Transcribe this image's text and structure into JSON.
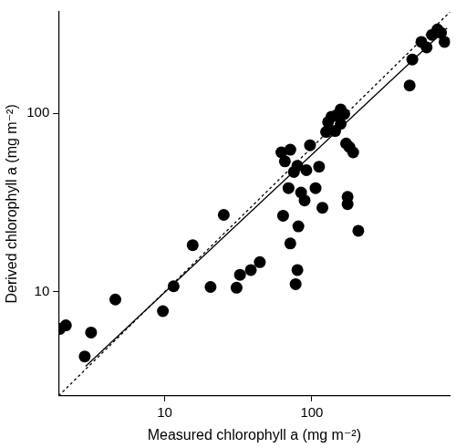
{
  "chart_data": {
    "type": "scatter",
    "x_label": "Measured chlorophyll a (mg m⁻²)",
    "y_label": "Derived chlorophyll a (mg m⁻²)",
    "log": true,
    "grid": false,
    "xlim": [
      1.9,
      870
    ],
    "ylim": [
      2.6,
      370
    ],
    "xticks": [
      10,
      100
    ],
    "yticks": [
      10,
      100
    ],
    "series": [
      {
        "type": "scatter",
        "color": "#000000",
        "marker": "circle",
        "x": [
          1.94,
          2.13,
          2.86,
          3.16,
          4.62,
          9.72,
          11.5,
          15.5,
          20.5,
          25.2,
          30.8,
          32.5,
          38.5,
          44.3,
          63.8,
          71.4,
          77.6,
          79.8,
          81.0,
          62.1,
          65.6,
          71.4,
          69.4,
          75.5,
          79.8,
          84.5,
          89.3,
          91.8,
          97.2,
          106,
          112,
          118,
          125,
          129,
          136,
          144,
          148,
          157,
          157,
          166,
          171,
          180,
          191,
          175,
          207,
          175,
          462,
          482,
          555,
          603,
          656,
          714,
          755,
          798
        ],
        "values": [
          6.17,
          6.46,
          4.32,
          5.89,
          9.02,
          7.76,
          10.7,
          18.2,
          10.6,
          26.9,
          10.5,
          12.4,
          13.2,
          14.6,
          26.6,
          18.6,
          11.0,
          13.2,
          23.2,
          60.3,
          53.7,
          62.4,
          38.0,
          46.8,
          50.7,
          35.9,
          32.4,
          47.9,
          66.1,
          38.0,
          50.1,
          29.5,
          78.5,
          89.1,
          95.5,
          79.4,
          97.7,
          105,
          87.1,
          98.9,
          67.6,
          64.6,
          60.3,
          30.9,
          21.9,
          33.9,
          143,
          200,
          251,
          234,
          275,
          295,
          282,
          251
        ]
      },
      {
        "type": "line",
        "color": "#000000",
        "line_style": "solid",
        "x": [
          2.9,
          830
        ],
        "values": [
          3.8,
          300
        ]
      },
      {
        "type": "line",
        "color": "#000000",
        "line_style": "dashed",
        "x": [
          1.9,
          870
        ],
        "values": [
          2.6,
          370
        ]
      }
    ]
  }
}
